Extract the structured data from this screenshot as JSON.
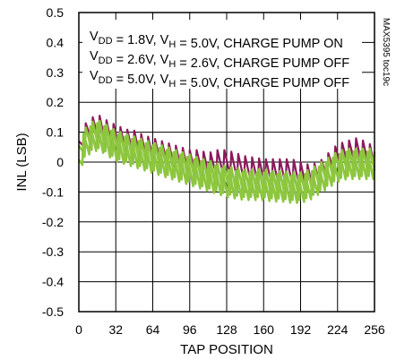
{
  "chart_data": {
    "type": "line",
    "title": "",
    "xlabel": "TAP POSITION",
    "ylabel": "INL (LSB)",
    "xlim": [
      0,
      256
    ],
    "ylim": [
      -0.5,
      0.5
    ],
    "xticks": [
      "0",
      "32",
      "64",
      "96",
      "128",
      "160",
      "192",
      "224",
      "256"
    ],
    "yticks": [
      "0.5",
      "0.4",
      "0.3",
      "0.2",
      "0.1",
      "0",
      "-0.1",
      "-0.2",
      "-0.3",
      "-0.4",
      "-0.5"
    ],
    "grid": true,
    "legend_placement": "top",
    "side_note": "MAX5395 toc19c",
    "legend": [
      {
        "base": "V",
        "sub": "DD",
        "mid": " = 1.8V, V",
        "sub2": "H",
        "rest": " = 5.0V, CHARGE PUMP ON"
      },
      {
        "base": "V",
        "sub": "DD",
        "mid": " = 2.6V, V",
        "sub2": "H",
        "rest": " = 2.6V, CHARGE PUMP OFF"
      },
      {
        "base": "V",
        "sub": "DD",
        "mid": " = 5.0V, V",
        "sub2": "H",
        "rest": " = 5.0V, CHARGE PUMP OFF"
      }
    ],
    "series": [
      {
        "color": "#8b1a5c",
        "x": [
          0,
          4,
          8,
          12,
          16,
          20,
          24,
          28,
          32,
          40,
          48,
          56,
          64,
          72,
          80,
          88,
          96,
          104,
          112,
          120,
          128,
          136,
          144,
          152,
          160,
          168,
          176,
          184,
          192,
          200,
          208,
          216,
          224,
          232,
          240,
          248,
          256
        ],
        "y": [
          0.02,
          0.07,
          0.09,
          0.1,
          0.11,
          0.1,
          0.09,
          0.08,
          0.075,
          0.06,
          0.055,
          0.04,
          0.03,
          0.02,
          0.01,
          0.0,
          -0.01,
          -0.01,
          -0.02,
          -0.01,
          -0.01,
          -0.02,
          -0.03,
          -0.035,
          -0.04,
          -0.04,
          -0.04,
          -0.04,
          -0.05,
          -0.06,
          -0.05,
          -0.02,
          0.01,
          0.02,
          0.03,
          0.02,
          0.0
        ]
      },
      {
        "color": "#8dc63f",
        "x": [
          0,
          4,
          8,
          12,
          16,
          20,
          24,
          28,
          32,
          40,
          48,
          56,
          64,
          72,
          80,
          88,
          96,
          104,
          112,
          120,
          128,
          136,
          144,
          152,
          160,
          168,
          176,
          184,
          192,
          200,
          208,
          216,
          224,
          232,
          240,
          248,
          256
        ],
        "y": [
          0.0,
          0.05,
          0.07,
          0.08,
          0.085,
          0.08,
          0.07,
          0.06,
          0.05,
          0.04,
          0.03,
          0.02,
          0.01,
          0.0,
          -0.01,
          -0.02,
          -0.03,
          -0.04,
          -0.05,
          -0.06,
          -0.07,
          -0.075,
          -0.08,
          -0.08,
          -0.08,
          -0.085,
          -0.085,
          -0.09,
          -0.09,
          -0.08,
          -0.06,
          -0.04,
          -0.02,
          -0.01,
          -0.01,
          -0.01,
          -0.01
        ]
      },
      {
        "color": "#8dc63f",
        "x": [
          0,
          4,
          8,
          12,
          16,
          20,
          24,
          28,
          32,
          40,
          48,
          56,
          64,
          72,
          80,
          88,
          96,
          104,
          112,
          120,
          128,
          136,
          144,
          152,
          160,
          168,
          176,
          184,
          192,
          200,
          208,
          216,
          224,
          232,
          240,
          248,
          256
        ],
        "y": [
          -0.01,
          0.04,
          0.06,
          0.07,
          0.075,
          0.07,
          0.06,
          0.05,
          0.04,
          0.03,
          0.02,
          0.01,
          0.0,
          -0.01,
          -0.02,
          -0.03,
          -0.04,
          -0.05,
          -0.06,
          -0.07,
          -0.08,
          -0.085,
          -0.09,
          -0.09,
          -0.09,
          -0.095,
          -0.095,
          -0.1,
          -0.1,
          -0.09,
          -0.07,
          -0.05,
          -0.03,
          -0.02,
          -0.02,
          -0.02,
          -0.02
        ]
      }
    ]
  }
}
